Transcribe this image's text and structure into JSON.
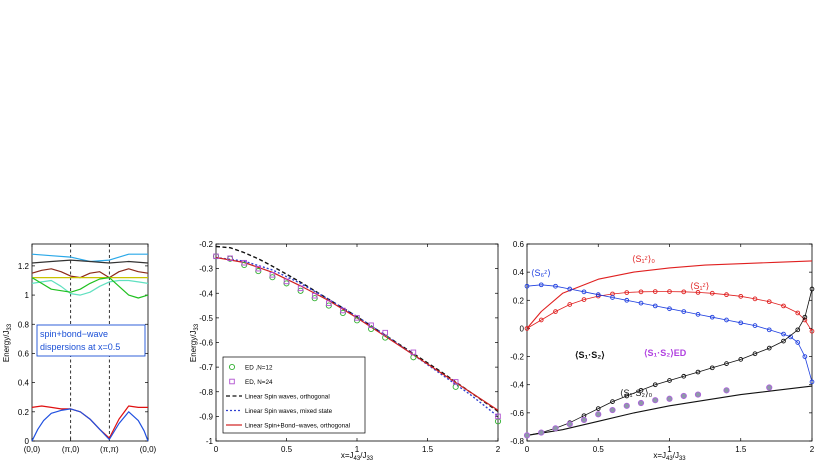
{
  "chart_data": [
    {
      "type": "line",
      "title": "",
      "xlabel": "",
      "ylabel": "Energy/J33",
      "ylabel_main": "Energy/J",
      "ylabel_sub": "33",
      "xlim": [
        0,
        3
      ],
      "ylim": [
        0,
        1.35
      ],
      "x_ticks": [
        0,
        1,
        2,
        3
      ],
      "x_tick_labels": [
        "(0,0)",
        "(π,0)",
        "(π,π)",
        "(0,0)"
      ],
      "y_ticks": [
        0,
        0.2,
        0.4,
        0.6,
        0.8,
        1,
        1.2
      ],
      "y_tick_labels": [
        "0",
        "0.2",
        "0.4",
        "0.6",
        "0.8",
        "1",
        "1.2"
      ],
      "vlines": [
        1,
        2
      ],
      "annotation": [
        "spin+bond−wave",
        "dispersions at x=0.5"
      ],
      "annotation_color": "#1a4fd6",
      "series": [
        {
          "color": "#2aa8e8",
          "x": [
            0,
            0.5,
            1,
            1.5,
            2,
            2.5,
            3
          ],
          "values": [
            1.28,
            1.27,
            1.26,
            1.23,
            1.24,
            1.28,
            1.28
          ]
        },
        {
          "color": "#333333",
          "x": [
            0,
            0.5,
            1,
            1.5,
            2,
            2.5,
            3
          ],
          "values": [
            1.22,
            1.23,
            1.24,
            1.23,
            1.22,
            1.23,
            1.22
          ]
        },
        {
          "color": "#8b2a1a",
          "x": [
            0,
            0.25,
            0.5,
            0.75,
            1,
            1.25,
            1.5,
            1.75,
            2,
            2.25,
            2.5,
            2.75,
            3
          ],
          "values": [
            1.15,
            1.17,
            1.18,
            1.16,
            1.13,
            1.12,
            1.15,
            1.16,
            1.12,
            1.16,
            1.18,
            1.16,
            1.15
          ]
        },
        {
          "color": "#c9c300",
          "x": [
            0,
            0.5,
            1,
            1.5,
            2,
            2.5,
            3
          ],
          "values": [
            1.12,
            1.12,
            1.12,
            1.12,
            1.12,
            1.12,
            1.12
          ]
        },
        {
          "color": "#60e0c0",
          "x": [
            0,
            0.25,
            0.5,
            0.75,
            1,
            1.25,
            1.5,
            1.75,
            2,
            2.25,
            2.5,
            2.75,
            3
          ],
          "values": [
            1.08,
            1.09,
            1.1,
            1.06,
            1.01,
            1.0,
            1.02,
            1.06,
            1.09,
            1.1,
            1.1,
            1.09,
            1.08
          ]
        },
        {
          "color": "#20c020",
          "x": [
            0,
            0.25,
            0.5,
            0.75,
            1,
            1.25,
            1.5,
            1.75,
            2,
            2.25,
            2.5,
            2.75,
            3
          ],
          "values": [
            1.12,
            1.08,
            1.04,
            1.03,
            1.02,
            1.04,
            1.08,
            1.11,
            1.12,
            1.06,
            1.0,
            0.98,
            1.0
          ]
        },
        {
          "color": "#e01010",
          "x": [
            0,
            0.25,
            0.5,
            0.75,
            1,
            1.25,
            1.5,
            1.75,
            2,
            2.25,
            2.5,
            2.75,
            3
          ],
          "values": [
            0.23,
            0.24,
            0.23,
            0.22,
            0.22,
            0.2,
            0.15,
            0.08,
            0.02,
            0.15,
            0.24,
            0.23,
            0.23
          ]
        },
        {
          "color": "#2050e0",
          "x": [
            0,
            0.15,
            0.3,
            0.5,
            0.75,
            1,
            1.25,
            1.5,
            1.75,
            2,
            2.25,
            2.5,
            2.75,
            2.9,
            3
          ],
          "values": [
            0.0,
            0.08,
            0.14,
            0.19,
            0.21,
            0.22,
            0.2,
            0.15,
            0.08,
            0.01,
            0.12,
            0.2,
            0.14,
            0.07,
            0.0
          ]
        }
      ]
    },
    {
      "type": "line",
      "title": "",
      "xlabel": "x=J43/J33",
      "xlabel_main": "x=J",
      "xlabel_sub1": "43",
      "xlabel_mid": "/J",
      "xlabel_sub2": "33",
      "ylabel": "Energy/J33",
      "ylabel_main": "Energy/J",
      "ylabel_sub": "33",
      "xlim": [
        0,
        2
      ],
      "ylim": [
        -1,
        -0.2
      ],
      "x_ticks": [
        0,
        0.5,
        1,
        1.5,
        2
      ],
      "x_tick_labels": [
        "0",
        "0.5",
        "1",
        "1.5",
        "2"
      ],
      "y_ticks": [
        -1,
        -0.9,
        -0.8,
        -0.7,
        -0.6,
        -0.5,
        -0.4,
        -0.3,
        -0.2
      ],
      "y_tick_labels": [
        "-1",
        "-0.9",
        "-0.8",
        "-0.7",
        "-0.6",
        "-0.5",
        "-0.4",
        "-0.3",
        "-0.2"
      ],
      "legend_position": "bottom-left",
      "series": [
        {
          "name": "ED ,N=12",
          "kind": "marker",
          "marker": "circle",
          "color": "#30b030",
          "x": [
            0,
            0.1,
            0.2,
            0.3,
            0.4,
            0.5,
            0.6,
            0.7,
            0.8,
            0.9,
            1.0,
            1.1,
            1.2,
            1.4,
            1.7,
            2.0
          ],
          "values": [
            -0.25,
            -0.26,
            -0.285,
            -0.31,
            -0.335,
            -0.36,
            -0.39,
            -0.42,
            -0.45,
            -0.48,
            -0.51,
            -0.545,
            -0.58,
            -0.66,
            -0.78,
            -0.92
          ]
        },
        {
          "name": "ED, N=24",
          "kind": "marker",
          "marker": "square",
          "color": "#b050d0",
          "x": [
            0,
            0.1,
            0.2,
            0.3,
            0.4,
            0.5,
            0.6,
            0.7,
            0.8,
            0.9,
            1.0,
            1.1,
            1.2,
            1.4,
            1.7,
            2.0
          ],
          "values": [
            -0.25,
            -0.258,
            -0.276,
            -0.3,
            -0.325,
            -0.352,
            -0.38,
            -0.41,
            -0.44,
            -0.47,
            -0.5,
            -0.53,
            -0.56,
            -0.64,
            -0.76,
            -0.9
          ]
        },
        {
          "name": "Linear Spin waves, orthogonal",
          "kind": "line",
          "dash": "4,2.5",
          "color": "#111111",
          "x": [
            0,
            0.1,
            0.2,
            0.3,
            0.4,
            0.6,
            0.8,
            1.0,
            1.2,
            1.4,
            1.6,
            1.8,
            2.0
          ],
          "values": [
            -0.21,
            -0.215,
            -0.235,
            -0.26,
            -0.29,
            -0.355,
            -0.425,
            -0.495,
            -0.57,
            -0.645,
            -0.72,
            -0.8,
            -0.88
          ]
        },
        {
          "name": "Linear Spin waves, mixed state",
          "kind": "line",
          "dash": "2,2",
          "color": "#3040d0",
          "x": [
            0,
            0.2,
            0.4,
            0.6,
            0.8,
            1.0,
            1.2,
            1.4,
            1.6,
            1.8,
            2.0
          ],
          "values": [
            -0.255,
            -0.27,
            -0.305,
            -0.36,
            -0.425,
            -0.495,
            -0.57,
            -0.65,
            -0.73,
            -0.81,
            -0.9
          ]
        },
        {
          "name": "Linear Spin+Bond−waves, orthogonal",
          "kind": "line",
          "dash": "",
          "color": "#d02020",
          "x": [
            0,
            0.2,
            0.4,
            0.6,
            0.8,
            1.0,
            1.2,
            1.4,
            1.6,
            1.8,
            2.0
          ],
          "values": [
            -0.255,
            -0.275,
            -0.315,
            -0.37,
            -0.43,
            -0.5,
            -0.575,
            -0.65,
            -0.725,
            -0.8,
            -0.875
          ]
        }
      ]
    },
    {
      "type": "line",
      "title": "",
      "xlabel": "x=J43/J33",
      "xlabel_main": "x=J",
      "xlabel_sub1": "43",
      "xlabel_mid": "/J",
      "xlabel_sub2": "33",
      "ylabel": "",
      "xlim": [
        0,
        2
      ],
      "ylim": [
        -0.8,
        0.6
      ],
      "x_ticks": [
        0,
        0.5,
        1,
        1.5,
        2
      ],
      "x_tick_labels": [
        "0",
        "0.5",
        "1",
        "1.5",
        "2"
      ],
      "y_ticks": [
        -0.8,
        -0.6,
        -0.4,
        -0.2,
        0,
        0.2,
        0.4,
        0.6
      ],
      "y_tick_labels": [
        "-0.8",
        "-0.6",
        "-0.4",
        "-0.2",
        "0",
        "0.2",
        "0.4",
        "0.6"
      ],
      "annotations": [
        {
          "text": "⟨S₁ᶻ⟩₀",
          "color": "#e02020"
        },
        {
          "text": "⟨S₁ᶻ⟩",
          "color": "#e02020"
        },
        {
          "text": "⟨S₆ᶻ⟩",
          "color": "#2040e0"
        },
        {
          "text": "⟨S₁·S₂⟩",
          "color": "#111111"
        },
        {
          "text": "⟨S₁·S₂⟩ED",
          "color": "#b040e0"
        },
        {
          "text": "⟨S₁·S₂⟩₀",
          "color": "#111111"
        }
      ],
      "series": [
        {
          "color": "#e02020",
          "kind": "line",
          "x": [
            0,
            0.1,
            0.25,
            0.5,
            0.75,
            1.0,
            1.25,
            1.5,
            1.75,
            2.0
          ],
          "values": [
            0.0,
            0.12,
            0.25,
            0.35,
            0.4,
            0.43,
            0.45,
            0.46,
            0.47,
            0.48
          ]
        },
        {
          "color": "#e02020",
          "kind": "marker",
          "x": [
            0,
            0.1,
            0.2,
            0.3,
            0.4,
            0.5,
            0.6,
            0.7,
            0.8,
            0.9,
            1.0,
            1.1,
            1.2,
            1.3,
            1.4,
            1.5,
            1.6,
            1.7,
            1.8,
            1.9,
            1.95,
            2.0
          ],
          "values": [
            0.0,
            0.06,
            0.12,
            0.17,
            0.205,
            0.23,
            0.245,
            0.255,
            0.26,
            0.262,
            0.262,
            0.26,
            0.256,
            0.25,
            0.24,
            0.228,
            0.21,
            0.19,
            0.16,
            0.11,
            0.06,
            -0.02
          ]
        },
        {
          "color": "#2040e0",
          "kind": "marker",
          "x": [
            0,
            0.1,
            0.2,
            0.3,
            0.4,
            0.5,
            0.6,
            0.7,
            0.8,
            0.9,
            1.0,
            1.1,
            1.2,
            1.3,
            1.4,
            1.5,
            1.6,
            1.7,
            1.8,
            1.85,
            1.9,
            1.95,
            2.0
          ],
          "values": [
            0.3,
            0.31,
            0.3,
            0.28,
            0.26,
            0.24,
            0.22,
            0.2,
            0.18,
            0.16,
            0.14,
            0.12,
            0.1,
            0.08,
            0.06,
            0.04,
            0.02,
            -0.01,
            -0.04,
            -0.06,
            -0.1,
            -0.2,
            -0.38
          ]
        },
        {
          "color": "#111111",
          "kind": "marker",
          "x": [
            0,
            0.1,
            0.2,
            0.3,
            0.4,
            0.5,
            0.6,
            0.7,
            0.8,
            0.9,
            1.0,
            1.1,
            1.2,
            1.3,
            1.4,
            1.5,
            1.6,
            1.7,
            1.8,
            1.9,
            1.95,
            2.0
          ],
          "values": [
            -0.76,
            -0.74,
            -0.71,
            -0.67,
            -0.62,
            -0.57,
            -0.52,
            -0.48,
            -0.44,
            -0.4,
            -0.37,
            -0.34,
            -0.31,
            -0.28,
            -0.25,
            -0.22,
            -0.18,
            -0.14,
            -0.09,
            -0.01,
            0.08,
            0.28
          ]
        },
        {
          "color": "#111111",
          "kind": "line",
          "x": [
            0,
            0.25,
            0.5,
            0.75,
            1.0,
            1.25,
            1.5,
            1.75,
            2.0
          ],
          "values": [
            -0.76,
            -0.72,
            -0.66,
            -0.6,
            -0.55,
            -0.51,
            -0.47,
            -0.44,
            -0.41
          ]
        },
        {
          "color": "#7a8aa0",
          "kind": "ed",
          "x": [
            0.0,
            0.1,
            0.2,
            0.3,
            0.4,
            0.5,
            0.6,
            0.7,
            0.8,
            0.9,
            1.0,
            1.1,
            1.2,
            1.4,
            1.7
          ],
          "values": [
            -0.76,
            -0.74,
            -0.71,
            -0.68,
            -0.65,
            -0.61,
            -0.58,
            -0.55,
            -0.53,
            -0.51,
            -0.5,
            -0.48,
            -0.47,
            -0.44,
            -0.42
          ]
        }
      ]
    }
  ]
}
